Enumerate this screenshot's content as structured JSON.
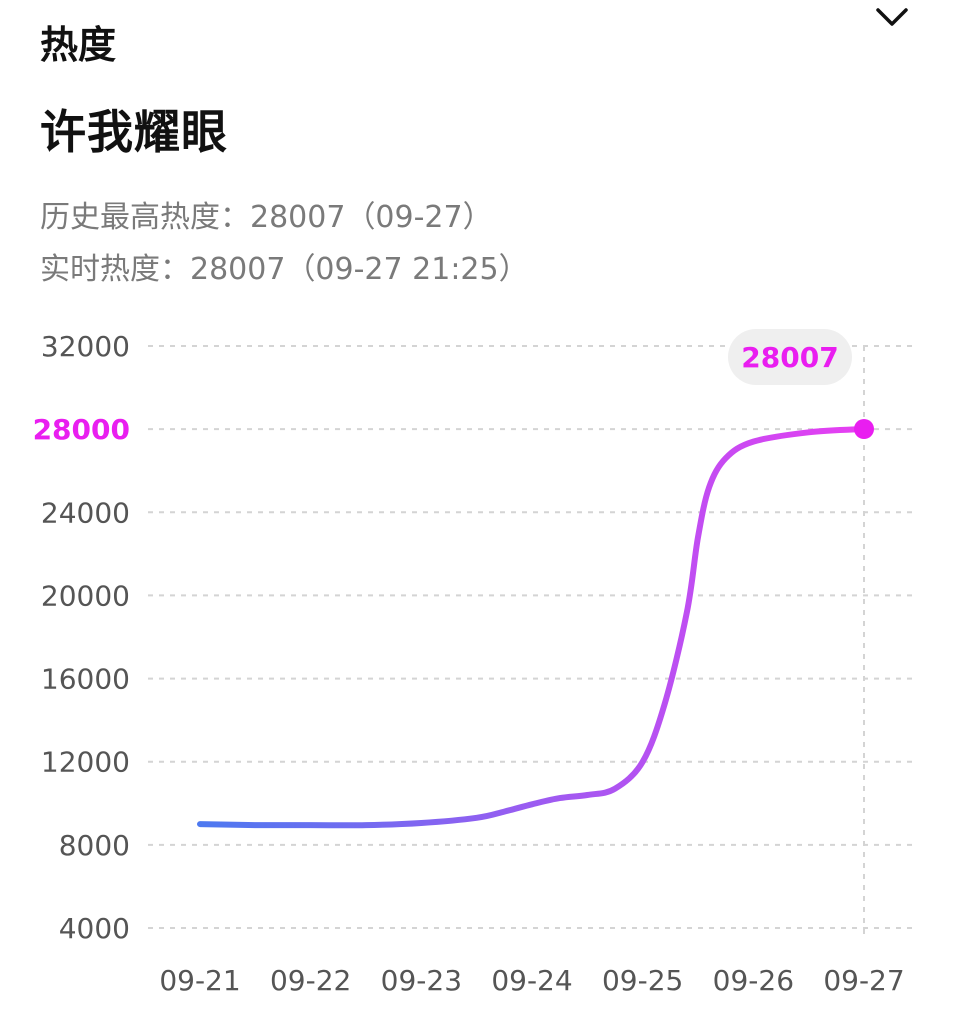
{
  "header": {
    "section_title": "热度",
    "collapse_icon": "chevron-down-icon"
  },
  "topic": {
    "title": "许我耀眼"
  },
  "stats": {
    "peak_label": "历史最高热度：",
    "peak_value": "28007",
    "peak_date": "（09-27）",
    "realtime_label": "实时热度：",
    "realtime_value": "28007",
    "realtime_time": "（09-27 21:25）"
  },
  "colors": {
    "line_start": "#4d79f0",
    "line_end": "#e83ef2",
    "highlight": "#e91ef0",
    "tooltip_bg": "#efefef"
  },
  "chart_data": {
    "type": "line",
    "x": [
      "09-21",
      "09-22",
      "09-23",
      "09-24",
      "09-25",
      "09-26",
      "09-27"
    ],
    "y_ticks": [
      32000,
      28000,
      24000,
      20000,
      16000,
      12000,
      8000,
      4000
    ],
    "highlight_tick": 28000,
    "ylim": [
      4000,
      32000
    ],
    "grid": true,
    "series": [
      {
        "points": [
          [
            0,
            9000
          ],
          [
            0.5,
            8950
          ],
          [
            1,
            8950
          ],
          [
            1.5,
            8950
          ],
          [
            2,
            9050
          ],
          [
            2.5,
            9300
          ],
          [
            2.75,
            9600
          ],
          [
            3,
            9950
          ],
          [
            3.25,
            10250
          ],
          [
            3.5,
            10400
          ],
          [
            3.75,
            10700
          ],
          [
            4,
            12000
          ],
          [
            4.2,
            14800
          ],
          [
            4.4,
            19200
          ],
          [
            4.5,
            22800
          ],
          [
            4.6,
            25200
          ],
          [
            4.75,
            26600
          ],
          [
            5,
            27400
          ],
          [
            5.5,
            27850
          ],
          [
            6,
            28007
          ]
        ]
      }
    ],
    "end_point": {
      "x": "09-27",
      "value": 28007,
      "label": "28007"
    }
  }
}
